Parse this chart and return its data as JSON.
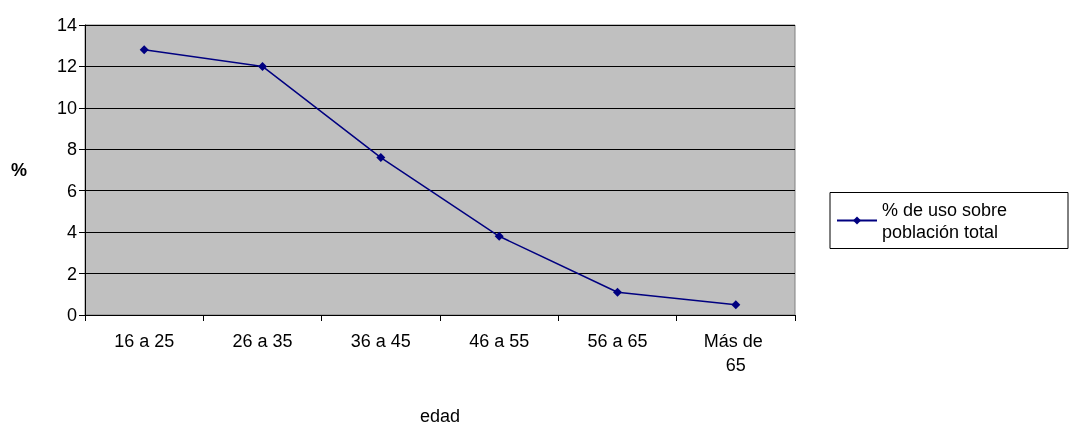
{
  "chart_data": {
    "type": "line",
    "xlabel": "edad",
    "ylabel": "%",
    "categories": [
      "16 a 25",
      "26 a 35",
      "36 a 45",
      "46 a 55",
      "56 a 65",
      "Más de 65"
    ],
    "series": [
      {
        "name": "% de uso sobre población total",
        "color": "#000080",
        "values": [
          12.8,
          12.0,
          7.6,
          3.8,
          1.1,
          0.5
        ]
      }
    ],
    "ylim": [
      0,
      14
    ],
    "yticks": [
      0,
      2,
      4,
      6,
      8,
      10,
      12,
      14
    ],
    "grid": "y",
    "legend": "right",
    "marker": "diamond",
    "line_style": "solid"
  }
}
